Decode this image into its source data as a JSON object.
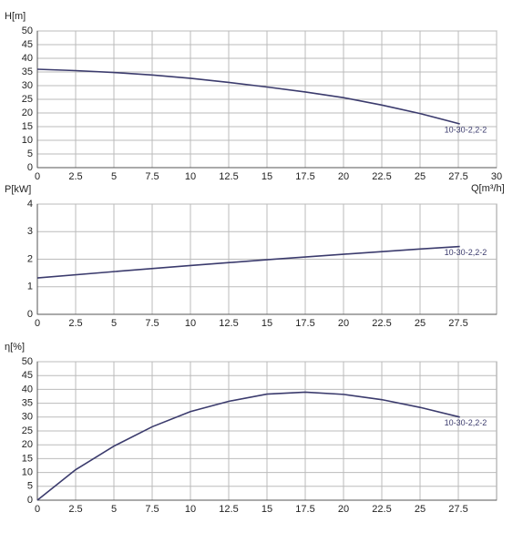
{
  "chart_data": [
    {
      "type": "line",
      "y_label": "H[m]",
      "x_label": "Q[m³/h]",
      "x": [
        0,
        2.5,
        5,
        7.5,
        10,
        12.5,
        15,
        17.5,
        20,
        22.5,
        25,
        27.6
      ],
      "series": [
        {
          "name": "10-30-2,2-2",
          "color": "#3b3b6d",
          "values": [
            36,
            35.5,
            34.8,
            33.9,
            32.7,
            31.2,
            29.5,
            27.7,
            25.6,
            22.9,
            19.8,
            16
          ]
        }
      ],
      "xlim": [
        0,
        30
      ],
      "ylim": [
        0,
        50
      ],
      "xticks": [
        0,
        2.5,
        5,
        7.5,
        10,
        12.5,
        15,
        17.5,
        20,
        22.5,
        25,
        27.5,
        30
      ],
      "yticks": [
        0,
        5,
        10,
        15,
        20,
        25,
        30,
        35,
        40,
        45,
        50
      ],
      "grid": true
    },
    {
      "type": "line",
      "y_label": "P[kW]",
      "x": [
        0,
        5,
        10,
        15,
        20,
        25,
        27.6
      ],
      "series": [
        {
          "name": "10-30-2,2-2",
          "color": "#3b3b6d",
          "values": [
            1.32,
            1.55,
            1.77,
            1.98,
            2.18,
            2.37,
            2.46
          ]
        }
      ],
      "xlim": [
        0,
        30
      ],
      "ylim": [
        0,
        4
      ],
      "xticks": [
        0,
        2.5,
        5,
        7.5,
        10,
        12.5,
        15,
        17.5,
        20,
        22.5,
        25,
        27.5
      ],
      "yticks": [
        0,
        1,
        2,
        3,
        4
      ],
      "grid": true
    },
    {
      "type": "line",
      "y_label": "η[%]",
      "x": [
        0,
        2.5,
        5,
        7.5,
        10,
        12.5,
        15,
        17.5,
        20,
        22.5,
        25,
        27.6
      ],
      "series": [
        {
          "name": "10-30-2,2-2",
          "color": "#3b3b6d",
          "values": [
            0,
            11,
            19.5,
            26.5,
            32,
            35.7,
            38.3,
            39,
            38.2,
            36.3,
            33.5,
            30
          ]
        }
      ],
      "xlim": [
        0,
        30
      ],
      "ylim": [
        0,
        50
      ],
      "xticks": [
        0,
        2.5,
        5,
        7.5,
        10,
        12.5,
        15,
        17.5,
        20,
        22.5,
        25,
        27.5
      ],
      "yticks": [
        0,
        5,
        10,
        15,
        20,
        25,
        30,
        35,
        40,
        45,
        50
      ],
      "grid": true
    }
  ]
}
